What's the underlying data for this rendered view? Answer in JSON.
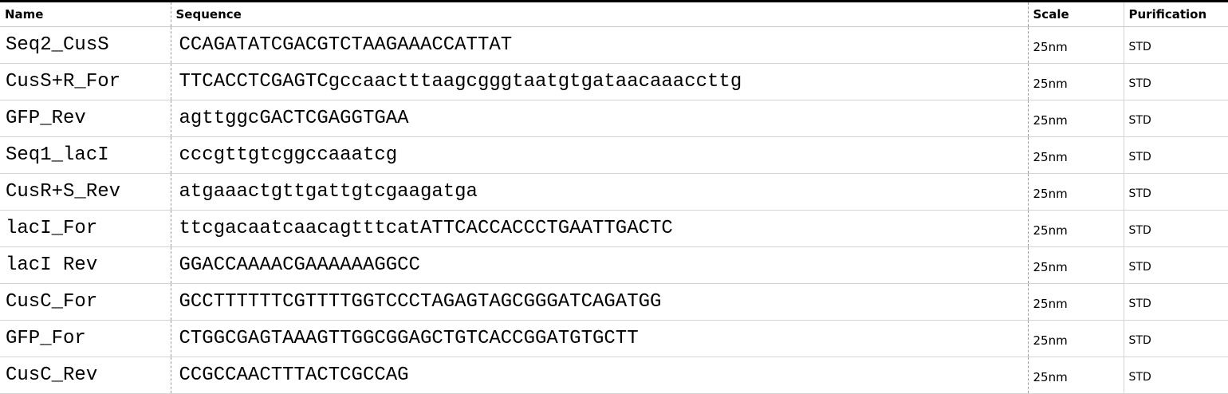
{
  "headers": {
    "name": "Name",
    "sequence": "Sequence",
    "scale": "Scale",
    "purification": "Purification"
  },
  "rows": [
    {
      "name": "Seq2_CusS",
      "sequence": "CCAGATATCGACGTCTAAGAAACCATTAT",
      "scale": "25nm",
      "purification": "STD"
    },
    {
      "name": "CusS+R_For",
      "sequence": "TTCACCTCGAGTCgccaactttaagcgggtaatgtgataacaaaccttg",
      "scale": "25nm",
      "purification": "STD"
    },
    {
      "name": "GFP_Rev",
      "sequence": "agttggcGACTCGAGGTGAA",
      "scale": "25nm",
      "purification": "STD"
    },
    {
      "name": "Seq1_lacI",
      "sequence": "cccgttgtcggccaaatcg",
      "scale": "25nm",
      "purification": "STD"
    },
    {
      "name": "CusR+S_Rev",
      "sequence": "atgaaactgttgattgtcgaagatga",
      "scale": "25nm",
      "purification": "STD"
    },
    {
      "name": "lacI_For",
      "sequence": "ttcgacaatcaacagtttcatATTCACCACCCTGAATTGACTC",
      "scale": "25nm",
      "purification": "STD"
    },
    {
      "name": "lacI Rev",
      "sequence": "GGACCAAAACGAAAAAAGGCC",
      "scale": "25nm",
      "purification": "STD"
    },
    {
      "name": "CusC_For",
      "sequence": "GCCTTTTTTCGTTTTGGTCCCTAGAGTAGCGGGATCAGATGG",
      "scale": "25nm",
      "purification": "STD"
    },
    {
      "name": "GFP_For",
      "sequence": "CTGGCGAGTAAAGTTGGCGGAGCTGTCACCGGATGTGCTT",
      "scale": "25nm",
      "purification": "STD"
    },
    {
      "name": "CusC_Rev",
      "sequence": "CCGCCAACTTTACTCGCCAG",
      "scale": "25nm",
      "purification": "STD"
    }
  ]
}
